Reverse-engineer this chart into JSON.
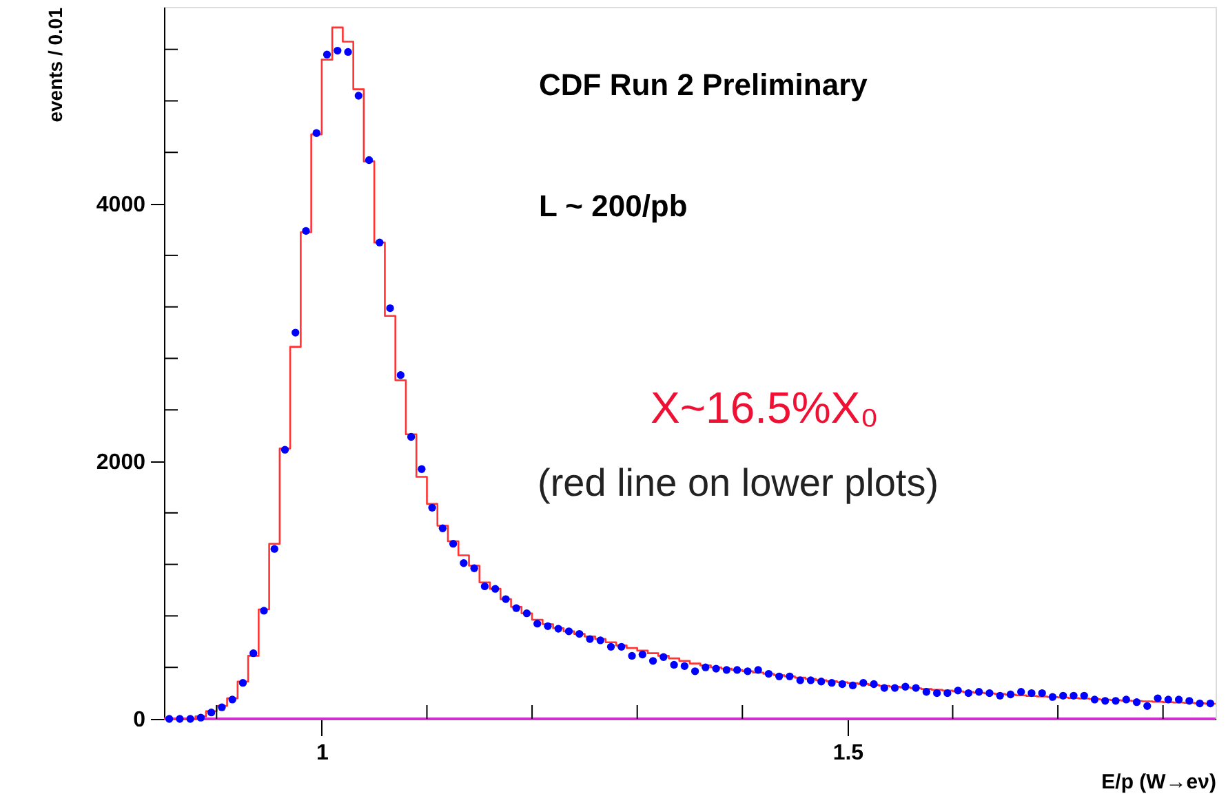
{
  "chart_data": {
    "type": "histogram",
    "xlabel": "E/p (W→eν)",
    "ylabel": "events / 0.01",
    "annotations": [
      "CDF Run 2 Preliminary",
      "L ~ 200/pb",
      "X~16.5%X₀",
      "(red line on lower plots)"
    ],
    "bins": [
      0.85,
      0.86,
      0.87,
      0.88,
      0.89,
      0.9,
      0.91,
      0.92,
      0.93,
      0.94,
      0.95,
      0.96,
      0.97,
      0.98,
      0.99,
      1.0,
      1.01,
      1.02,
      1.03,
      1.04,
      1.05,
      1.06,
      1.07,
      1.08,
      1.09,
      1.1,
      1.11,
      1.12,
      1.13,
      1.14,
      1.15,
      1.16,
      1.17,
      1.18,
      1.19,
      1.2,
      1.21,
      1.22,
      1.23,
      1.24,
      1.25,
      1.26,
      1.27,
      1.28,
      1.29,
      1.3,
      1.31,
      1.32,
      1.33,
      1.34,
      1.35,
      1.36,
      1.37,
      1.38,
      1.39,
      1.4,
      1.41,
      1.42,
      1.43,
      1.44,
      1.45,
      1.46,
      1.47,
      1.48,
      1.49,
      1.5,
      1.51,
      1.52,
      1.53,
      1.54,
      1.55,
      1.56,
      1.57,
      1.58,
      1.59,
      1.6,
      1.61,
      1.62,
      1.63,
      1.64,
      1.65,
      1.66,
      1.67,
      1.68,
      1.69,
      1.7,
      1.71,
      1.72,
      1.73,
      1.74,
      1.75,
      1.76,
      1.77,
      1.78,
      1.79,
      1.8,
      1.81,
      1.82,
      1.83,
      1.84,
      1.85
    ],
    "series": [
      {
        "type": "histogram",
        "color": "#ff3333",
        "values": [
          0,
          0,
          0,
          20,
          60,
          100,
          160,
          290,
          490,
          850,
          1360,
          2100,
          2890,
          3780,
          4540,
          5120,
          5370,
          5260,
          4890,
          4330,
          3700,
          3130,
          2630,
          2210,
          1880,
          1670,
          1500,
          1380,
          1270,
          1190,
          1060,
          1010,
          930,
          870,
          820,
          770,
          735,
          705,
          680,
          660,
          640,
          620,
          595,
          570,
          550,
          530,
          510,
          490,
          470,
          450,
          430,
          415,
          400,
          390,
          380,
          370,
          360,
          350,
          340,
          330,
          320,
          310,
          300,
          292,
          285,
          278,
          271,
          264,
          257,
          250,
          244,
          238,
          232,
          226,
          220,
          214,
          208,
          203,
          198,
          193,
          188,
          183,
          178,
          174,
          170,
          166,
          162,
          158,
          154,
          150,
          146,
          142,
          139,
          136,
          133,
          130,
          127,
          124,
          121,
          118
        ]
      },
      {
        "type": "scatter",
        "color": "#0000ff",
        "marker": "circle",
        "x": [
          0.855,
          0.865,
          0.875,
          0.885,
          0.895,
          0.905,
          0.915,
          0.925,
          0.935,
          0.945,
          0.955,
          0.965,
          0.975,
          0.985,
          0.995,
          1.005,
          1.015,
          1.025,
          1.035,
          1.045,
          1.055,
          1.065,
          1.075,
          1.085,
          1.095,
          1.105,
          1.115,
          1.125,
          1.135,
          1.145,
          1.155,
          1.165,
          1.175,
          1.185,
          1.195,
          1.205,
          1.215,
          1.225,
          1.235,
          1.245,
          1.255,
          1.265,
          1.275,
          1.285,
          1.295,
          1.305,
          1.315,
          1.325,
          1.335,
          1.345,
          1.355,
          1.365,
          1.375,
          1.385,
          1.395,
          1.405,
          1.415,
          1.425,
          1.435,
          1.445,
          1.455,
          1.465,
          1.475,
          1.485,
          1.495,
          1.505,
          1.515,
          1.525,
          1.535,
          1.545,
          1.555,
          1.565,
          1.575,
          1.585,
          1.595,
          1.605,
          1.615,
          1.625,
          1.635,
          1.645,
          1.655,
          1.665,
          1.675,
          1.685,
          1.695,
          1.705,
          1.715,
          1.725,
          1.735,
          1.745,
          1.755,
          1.765,
          1.775,
          1.785,
          1.795,
          1.805,
          1.815,
          1.825,
          1.835,
          1.845
        ],
        "values": [
          0,
          0,
          0,
          10,
          50,
          90,
          150,
          280,
          510,
          840,
          1320,
          2090,
          3000,
          3790,
          4550,
          5160,
          5190,
          5180,
          4840,
          4340,
          3700,
          3190,
          2670,
          2190,
          1940,
          1640,
          1480,
          1360,
          1210,
          1170,
          1030,
          1010,
          930,
          860,
          820,
          740,
          720,
          700,
          680,
          660,
          620,
          610,
          560,
          560,
          490,
          500,
          450,
          480,
          420,
          410,
          370,
          400,
          390,
          380,
          380,
          370,
          380,
          350,
          330,
          330,
          300,
          300,
          290,
          280,
          270,
          260,
          280,
          270,
          240,
          240,
          250,
          240,
          210,
          200,
          200,
          220,
          200,
          210,
          200,
          180,
          190,
          210,
          200,
          200,
          170,
          180,
          180,
          180,
          150,
          140,
          140,
          150,
          130,
          100,
          160,
          150,
          150,
          140,
          120,
          120
        ]
      }
    ],
    "xlim": [
      0.85,
      1.85
    ],
    "xticks": [
      {
        "value": 0.9,
        "label": null
      },
      1,
      {
        "value": 1.1,
        "label": null
      },
      {
        "value": 1.2,
        "label": null
      },
      {
        "value": 1.3,
        "label": null
      },
      {
        "value": 1.4,
        "label": null
      },
      1.5,
      {
        "value": 1.6,
        "label": null
      },
      {
        "value": 1.7,
        "label": null
      },
      {
        "value": 1.8,
        "label": null
      }
    ],
    "ylim": [
      0,
      5530
    ],
    "yticks": [
      0,
      {
        "value": 400,
        "label": null
      },
      {
        "value": 800,
        "label": null
      },
      {
        "value": 1200,
        "label": null
      },
      {
        "value": 1600,
        "label": null
      },
      2000,
      {
        "value": 2400,
        "label": null
      },
      {
        "value": 2800,
        "label": null
      },
      {
        "value": 3200,
        "label": null
      },
      {
        "value": 3600,
        "label": null
      },
      4000,
      {
        "value": 4400,
        "label": null
      },
      {
        "value": 4800,
        "label": null
      },
      {
        "value": 5200,
        "label": null
      }
    ],
    "ref_lines": [
      {
        "axis": "y",
        "value": 0,
        "color": "#cc33cc"
      }
    ],
    "grid": false
  }
}
